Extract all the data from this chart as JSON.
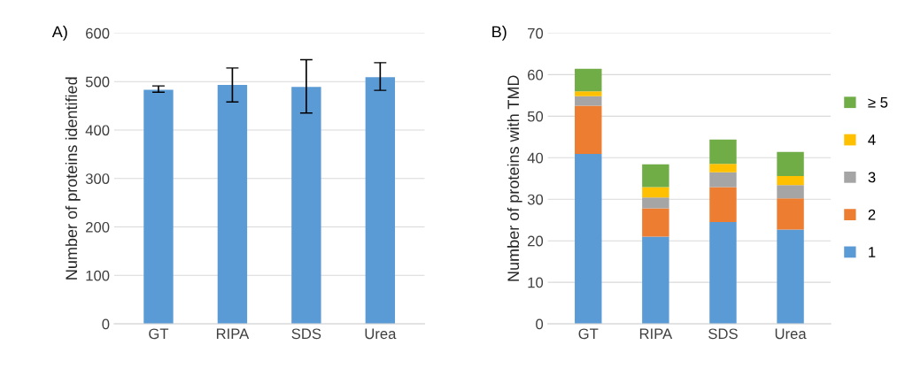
{
  "chart_data": [
    {
      "type": "bar",
      "title": "A)",
      "ylabel": "Number of proteins identified",
      "categories": [
        "GT",
        "RIPA",
        "SDS",
        "Urea"
      ],
      "series": [
        {
          "color": "#5b9bd5",
          "values": [
            483,
            493,
            489,
            509
          ],
          "errors": [
            [
              478,
              491
            ],
            [
              458,
              528
            ],
            [
              435,
              545
            ],
            [
              482,
              539
            ]
          ]
        }
      ],
      "ylim": [
        0,
        600
      ],
      "yticks": [
        0,
        100,
        200,
        300,
        400,
        500,
        600
      ],
      "grid": "y",
      "legend": false
    },
    {
      "type": "bar",
      "title": "B)",
      "ylabel": "Number of proteins with TMD",
      "categories": [
        "GT",
        "RIPA",
        "SDS",
        "Urea"
      ],
      "stacked": true,
      "series": [
        {
          "name": "1",
          "color": "#5b9bd5",
          "values": [
            40.9,
            21.0,
            24.5,
            22.7
          ]
        },
        {
          "name": "2",
          "color": "#ed7d31",
          "values": [
            11.6,
            6.8,
            8.4,
            7.5
          ]
        },
        {
          "name": "3",
          "color": "#a5a5a5",
          "values": [
            2.3,
            2.6,
            3.6,
            3.2
          ]
        },
        {
          "name": "4",
          "color": "#ffc000",
          "values": [
            1.2,
            2.5,
            2.0,
            2.2
          ]
        },
        {
          "name": "≥ 5",
          "color": "#70ad47",
          "values": [
            5.4,
            5.5,
            5.9,
            5.8
          ]
        }
      ],
      "ylim": [
        0,
        70
      ],
      "yticks": [
        0,
        10,
        20,
        30,
        40,
        50,
        60,
        70
      ],
      "grid": "y",
      "legend": "right"
    }
  ]
}
